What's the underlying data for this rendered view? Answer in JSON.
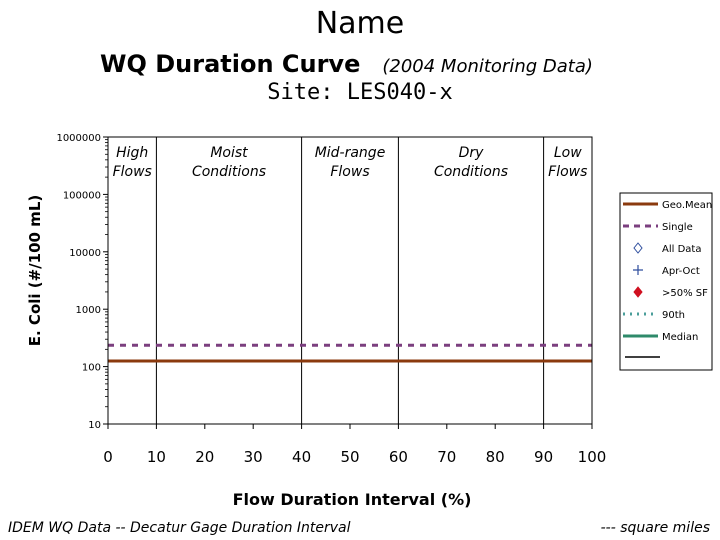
{
  "header": {
    "name": "Name",
    "subtitle": "WQ Duration Curve",
    "subtitle_note": "(2004 Monitoring Data)",
    "site": "Site:  LES040-x"
  },
  "footer": {
    "left": "IDEM WQ Data -- Decatur Gage Duration Interval",
    "right": "--- square miles"
  },
  "colors": {
    "geo_mean": "#8B3A0E",
    "single": "#7B3F7F",
    "all_data": "#2E4E9E",
    "apr_oct": "#2E4E9E",
    "gt50_sf": "#D01020",
    "ninetieth": "#4A9E9A",
    "median": "#2E8A6A"
  },
  "chart_data": {
    "type": "line",
    "xlabel": "Flow Duration Interval (%)",
    "ylabel": "E. Coli (#/100 mL)",
    "xlim": [
      0,
      100
    ],
    "ylim": [
      10,
      1000000
    ],
    "yscale": "log",
    "grid": false,
    "x_ticks": [
      "0",
      "10",
      "20",
      "30",
      "40",
      "50",
      "60",
      "70",
      "80",
      "90",
      "100"
    ],
    "y_ticks": [
      "1000000",
      "100000",
      "10000",
      "1000",
      "100",
      "10"
    ],
    "zone_boundaries": [
      10,
      40,
      60,
      90
    ],
    "zones": [
      {
        "label_1": "High",
        "label_2": "Flows"
      },
      {
        "label_1": "Moist",
        "label_2": "Conditions"
      },
      {
        "label_1": "Mid-range",
        "label_2": "Flows"
      },
      {
        "label_1": "Dry",
        "label_2": "Conditions"
      },
      {
        "label_1": "Low",
        "label_2": "Flows"
      }
    ],
    "series": [
      {
        "name": "Geo.Mean",
        "style": "solid",
        "x": [
          0,
          100
        ],
        "y": [
          125,
          125
        ]
      },
      {
        "name": "Single",
        "style": "dashed",
        "x": [
          0,
          100
        ],
        "y": [
          235,
          235
        ]
      }
    ],
    "legend_position": "right",
    "legend": [
      {
        "label": "Geo.Mean",
        "symbol": "line-solid",
        "color": "#8B3A0E"
      },
      {
        "label": "Single",
        "symbol": "line-dashed",
        "color": "#7B3F7F"
      },
      {
        "label": "All Data",
        "symbol": "diamond-open",
        "color": "#2E4E9E"
      },
      {
        "label": "Apr-Oct",
        "symbol": "plus",
        "color": "#2E4E9E"
      },
      {
        "label": ">50% SF",
        "symbol": "diamond-filled",
        "color": "#D01020"
      },
      {
        "label": "90th",
        "symbol": "line-dotted",
        "color": "#4A9E9A"
      },
      {
        "label": "Median",
        "symbol": "line-solid",
        "color": "#2E8A6A"
      }
    ]
  }
}
